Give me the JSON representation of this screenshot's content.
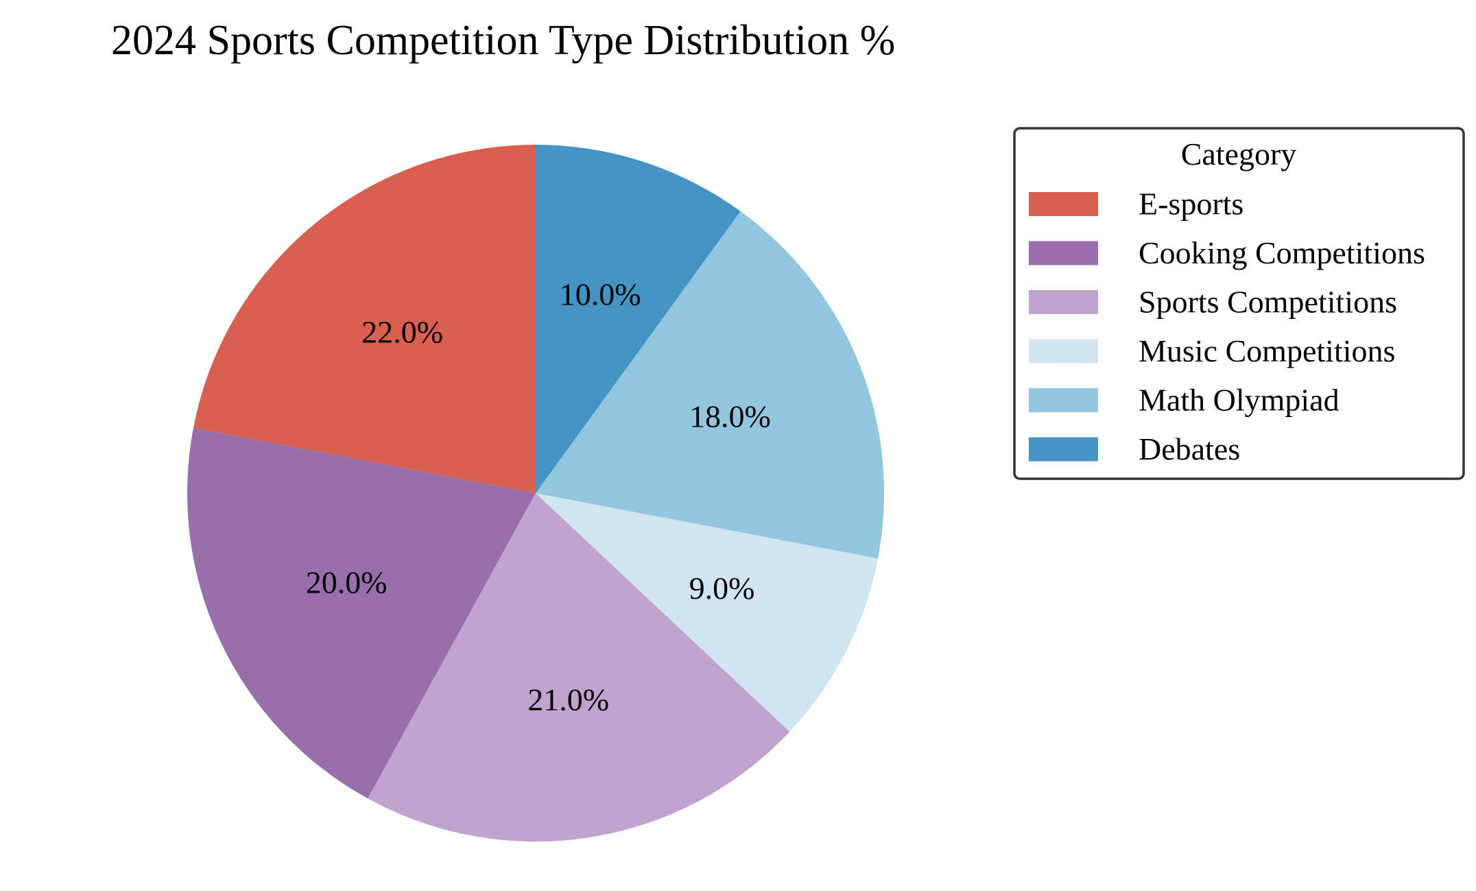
{
  "chart_data": {
    "type": "pie",
    "title": "2024 Sports Competition Type Distribution %",
    "legend_title": "Category",
    "legend_position": "right",
    "start_angle_deg": 90,
    "direction": "counterclockwise",
    "slices": [
      {
        "label": "E-sports",
        "value": 22.0,
        "display": "22.0%",
        "color": "#d95f4e"
      },
      {
        "label": "Cooking Competitions",
        "value": 20.0,
        "display": "20.0%",
        "color": "#986eab"
      },
      {
        "label": "Sports Competitions",
        "value": 21.0,
        "display": "21.0%",
        "color": "#c1a3cf"
      },
      {
        "label": "Music Competitions",
        "value": 9.0,
        "display": "9.0%",
        "color": "#d1e5f0"
      },
      {
        "label": "Math Olympiad",
        "value": 18.0,
        "display": "18.0%",
        "color": "#92c5de"
      },
      {
        "label": "Debates",
        "value": 10.0,
        "display": "10.0%",
        "color": "#4393c3"
      }
    ]
  }
}
